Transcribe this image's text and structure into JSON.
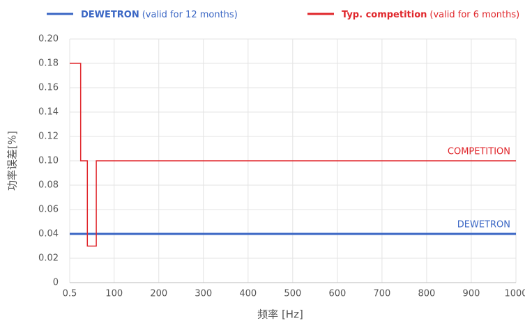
{
  "chart_data": {
    "type": "line",
    "x_label": "频率 [Hz]",
    "y_label": "功率误差[%]",
    "series": [
      {
        "name": "DEWETRON",
        "note": "(valid for 12 months)",
        "label": "DEWETRON",
        "color": "#3a66c4",
        "x": [
          0.5,
          1000
        ],
        "values": [
          0.04,
          0.04
        ]
      },
      {
        "name": "Typ. competition",
        "note": "(valid for 6 months)",
        "label": "COMPETITION",
        "color": "#e0262b",
        "x": [
          0.5,
          25,
          25,
          40,
          40,
          60,
          60,
          1000
        ],
        "values": [
          0.18,
          0.18,
          0.1,
          0.1,
          0.03,
          0.03,
          0.1,
          0.1
        ]
      }
    ],
    "xlim": [
      0.5,
      1000
    ],
    "xticks": [
      0.5,
      100,
      200,
      300,
      400,
      500,
      600,
      700,
      800,
      900,
      1000
    ],
    "ylim": [
      0,
      0.2
    ],
    "yticks": [
      0,
      0.02,
      0.04,
      0.06,
      0.08,
      {
        "value": 0.1,
        "label": "0.10"
      },
      0.12,
      0.14,
      0.16,
      0.18,
      {
        "value": 0.2,
        "label": "0.20"
      }
    ],
    "grid": true
  }
}
